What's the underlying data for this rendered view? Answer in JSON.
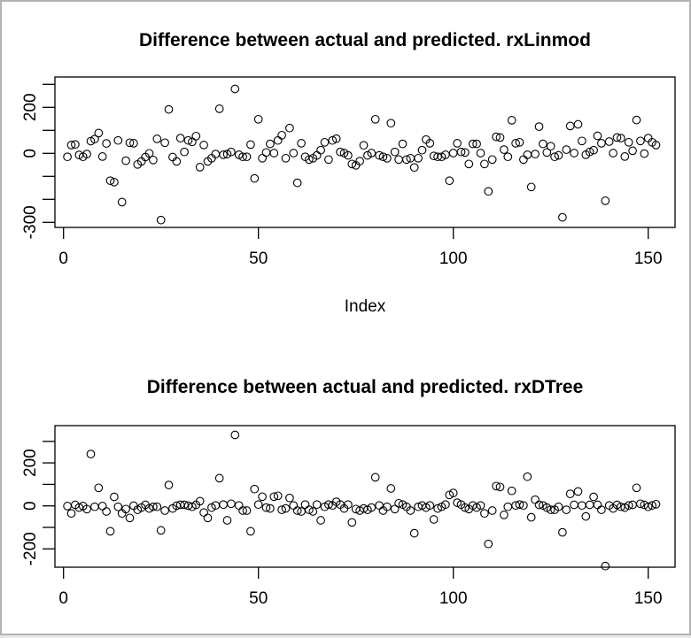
{
  "figure": {
    "background": "#ffffff",
    "frame_color": "#b3b3b3",
    "point_color": "#000000",
    "axis_color": "#000000"
  },
  "chart_data": [
    {
      "type": "scatter",
      "title": "Difference between actual and predicted. rxLinmod",
      "xlabel": "Index",
      "ylabel": "",
      "marker": "open-circle",
      "grid": false,
      "legend": "none",
      "xlim": [
        -3,
        158
      ],
      "ylim": [
        -320,
        320
      ],
      "x_ticks": [
        {
          "value": 0,
          "label": "0"
        },
        {
          "value": 50,
          "label": "50"
        },
        {
          "value": 100,
          "label": "100"
        },
        {
          "value": 150,
          "label": "150"
        }
      ],
      "y_ticks": [
        {
          "value": 300,
          "label": ""
        },
        {
          "value": 200,
          "label": "200"
        },
        {
          "value": 100,
          "label": ""
        },
        {
          "value": 0,
          "label": "0"
        },
        {
          "value": -100,
          "label": ""
        },
        {
          "value": -200,
          "label": ""
        },
        {
          "value": -300,
          "label": "-300"
        }
      ],
      "n_points": 152,
      "x_indices": {
        "from": 1,
        "to": 152,
        "step": 1
      },
      "y": [
        -15,
        36,
        39,
        -7,
        -15,
        -3,
        53,
        62,
        88,
        -14,
        43,
        -119,
        -125,
        56,
        -212,
        -32,
        46,
        44,
        -48,
        -35,
        -16,
        0,
        -29,
        63,
        -290,
        46,
        191,
        -16,
        -35,
        66,
        6,
        56,
        50,
        75,
        -60,
        36,
        -35,
        -21,
        -3,
        194,
        -6,
        -3,
        6,
        280,
        -6,
        -15,
        -15,
        38,
        -109,
        148,
        -21,
        4,
        41,
        1,
        56,
        79,
        -21,
        110,
        1,
        -128,
        44,
        -15,
        -27,
        -21,
        -9,
        14,
        48,
        -27,
        56,
        64,
        6,
        1,
        -9,
        -46,
        -52,
        -34,
        35,
        -9,
        1,
        148,
        -9,
        -15,
        -21,
        131,
        6,
        -27,
        41,
        -27,
        -21,
        -61,
        -21,
        14,
        60,
        44,
        -11,
        -15,
        -15,
        -6,
        -119,
        1,
        44,
        6,
        4,
        -46,
        41,
        41,
        1,
        -46,
        -165,
        -27,
        72,
        69,
        16,
        -15,
        144,
        44,
        48,
        -27,
        -6,
        -146,
        -3,
        116,
        41,
        4,
        31,
        -15,
        -9,
        -278,
        16,
        119,
        1,
        126,
        54,
        -6,
        6,
        14,
        76,
        44,
        -206,
        51,
        1,
        69,
        66,
        -14,
        48,
        11,
        145,
        54,
        -1,
        66,
        48,
        36
      ]
    },
    {
      "type": "scatter",
      "title": "Difference between actual and predicted. rxDTree",
      "xlabel": "",
      "ylabel": "",
      "marker": "open-circle",
      "grid": false,
      "legend": "none",
      "xlim": [
        -3,
        158
      ],
      "ylim": [
        -300,
        370
      ],
      "x_ticks": [
        {
          "value": 0,
          "label": "0"
        },
        {
          "value": 50,
          "label": "50"
        },
        {
          "value": 100,
          "label": "100"
        },
        {
          "value": 150,
          "label": "150"
        }
      ],
      "y_ticks": [
        {
          "value": 300,
          "label": ""
        },
        {
          "value": 200,
          "label": "200"
        },
        {
          "value": 100,
          "label": ""
        },
        {
          "value": 0,
          "label": "0"
        },
        {
          "value": -100,
          "label": ""
        },
        {
          "value": -200,
          "label": "-200"
        }
      ],
      "n_points": 152,
      "x_indices": {
        "from": 1,
        "to": 152,
        "step": 1
      },
      "y": [
        -1,
        -35,
        5,
        -8,
        -1,
        -15,
        241,
        -4,
        84,
        -1,
        -26,
        -118,
        42,
        -4,
        -35,
        -15,
        -56,
        1,
        -18,
        -8,
        5,
        -12,
        -4,
        -4,
        -114,
        -22,
        97,
        -12,
        1,
        5,
        5,
        1,
        -4,
        5,
        22,
        -31,
        -56,
        -8,
        2,
        129,
        6,
        -67,
        10,
        330,
        2,
        -22,
        -22,
        -118,
        78,
        6,
        43,
        -8,
        -12,
        43,
        47,
        -18,
        -12,
        37,
        2,
        -22,
        -26,
        6,
        -18,
        -26,
        6,
        -67,
        -4,
        6,
        2,
        19,
        6,
        -12,
        6,
        -77,
        -15,
        -22,
        -12,
        -18,
        -8,
        133,
        2,
        -22,
        -4,
        81,
        -15,
        12,
        6,
        -4,
        -22,
        -127,
        -4,
        2,
        -8,
        2,
        -63,
        -12,
        -4,
        6,
        51,
        60,
        15,
        6,
        -8,
        -15,
        2,
        -8,
        2,
        -35,
        -177,
        -22,
        92,
        88,
        -42,
        -4,
        70,
        2,
        6,
        2,
        136,
        -53,
        29,
        5,
        2,
        -8,
        -18,
        -18,
        -4,
        -123,
        -18,
        56,
        5,
        67,
        2,
        -49,
        5,
        42,
        5,
        -18,
        -280,
        2,
        -12,
        5,
        -4,
        -8,
        2,
        5,
        84,
        10,
        5,
        -4,
        2,
        8
      ]
    }
  ]
}
